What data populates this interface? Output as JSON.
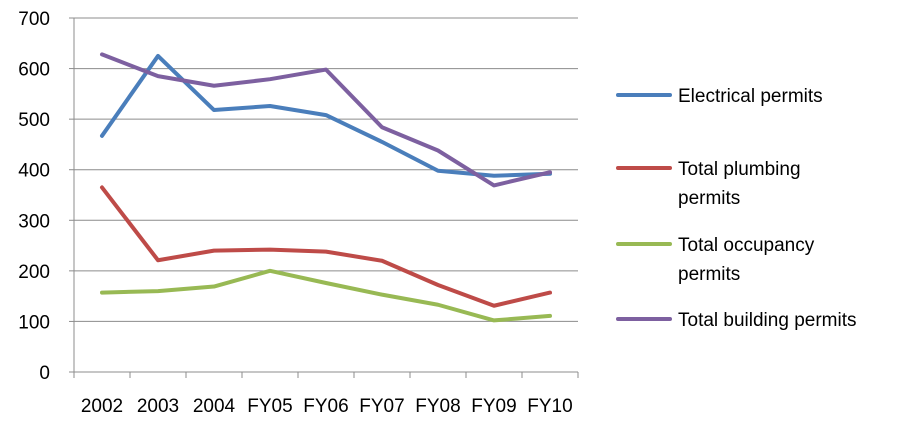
{
  "chart_data": {
    "type": "line",
    "title": "",
    "xlabel": "",
    "ylabel": "",
    "categories": [
      "2002",
      "2003",
      "2004",
      "FY05",
      "FY06",
      "FY07",
      "FY08",
      "FY09",
      "FY10"
    ],
    "ylim": [
      0,
      700
    ],
    "yticks": [
      "0",
      "100",
      "200",
      "300",
      "400",
      "500",
      "600",
      "700"
    ],
    "grid": "horizontal",
    "legend_position": "right",
    "series": [
      {
        "name": "Electrical permits",
        "color": "#4a7ebb",
        "values": [
          467,
          625,
          518,
          526,
          508,
          455,
          398,
          388,
          392
        ]
      },
      {
        "name": "Total plumbing permits",
        "color": "#be4b48",
        "values": [
          365,
          221,
          240,
          242,
          238,
          220,
          172,
          131,
          157
        ]
      },
      {
        "name": "Total occupancy permits",
        "color": "#98b954",
        "values": [
          157,
          160,
          169,
          200,
          176,
          153,
          133,
          102,
          111
        ]
      },
      {
        "name": "Total building permits",
        "color": "#7d60a0",
        "values": [
          628,
          585,
          566,
          579,
          598,
          484,
          438,
          369,
          395
        ]
      }
    ]
  }
}
